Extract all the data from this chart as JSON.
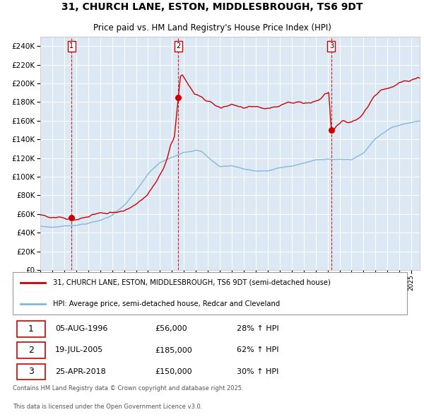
{
  "title_line1": "31, CHURCH LANE, ESTON, MIDDLESBROUGH, TS6 9DT",
  "title_line2": "Price paid vs. HM Land Registry's House Price Index (HPI)",
  "legend_line1": "31, CHURCH LANE, ESTON, MIDDLESBROUGH, TS6 9DT (semi-detached house)",
  "legend_line2": "HPI: Average price, semi-detached house, Redcar and Cleveland",
  "transactions": [
    {
      "num": 1,
      "date": "05-AUG-1996",
      "date_x": 1996.6,
      "price": 56000,
      "pct": "28% ↑ HPI"
    },
    {
      "num": 2,
      "date": "19-JUL-2005",
      "date_x": 2005.54,
      "price": 185000,
      "pct": "62% ↑ HPI"
    },
    {
      "num": 3,
      "date": "25-APR-2018",
      "date_x": 2018.32,
      "price": 150000,
      "pct": "30% ↑ HPI"
    }
  ],
  "footnote1": "Contains HM Land Registry data © Crown copyright and database right 2025.",
  "footnote2": "This data is licensed under the Open Government Licence v3.0.",
  "price_line_color": "#cc0000",
  "hpi_line_color": "#85b8d8",
  "plot_bg_color": "#dce9f5",
  "grid_color": "#ffffff",
  "vline_color": "#cc0000",
  "ylim": [
    0,
    250000
  ],
  "yticks": [
    0,
    20000,
    40000,
    60000,
    80000,
    100000,
    120000,
    140000,
    160000,
    180000,
    200000,
    220000,
    240000
  ],
  "xlim_start": 1994.0,
  "xlim_end": 2025.7,
  "fig_width": 6.0,
  "fig_height": 5.9
}
